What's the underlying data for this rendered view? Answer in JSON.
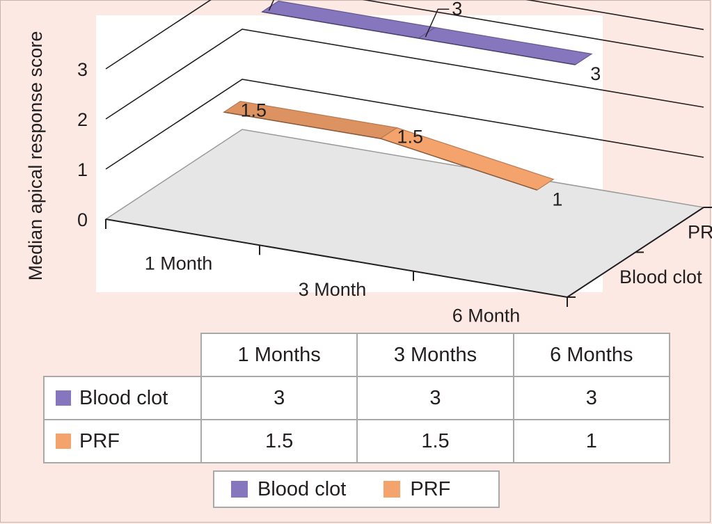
{
  "chart_data": {
    "type": "3d-line",
    "title": "",
    "ylabel": "Median apical response score",
    "ylim": [
      0,
      3
    ],
    "yticks": [
      "0",
      "1",
      "2",
      "3"
    ],
    "categories": [
      "1 Month",
      "3 Month",
      "6 Month"
    ],
    "depth_labels": [
      "PRF",
      "Blood clot"
    ],
    "series": [
      {
        "name": "Blood clot",
        "values": [
          3,
          3,
          3
        ],
        "labels": [
          "3",
          "3",
          "3"
        ],
        "color": "#8676be"
      },
      {
        "name": "PRF",
        "values": [
          1.5,
          1.5,
          1
        ],
        "labels": [
          "1.5",
          "1.5",
          "1"
        ],
        "color": "#f4a36c"
      }
    ],
    "grid": true,
    "legend": "bottom"
  },
  "table": {
    "headers": [
      "1 Months",
      "3 Months",
      "6 Months"
    ],
    "rows": [
      {
        "label": "Blood clot",
        "color": "#8676be",
        "values": [
          "3",
          "3",
          "3"
        ]
      },
      {
        "label": "PRF",
        "color": "#f4a36c",
        "values": [
          "1.5",
          "1.5",
          "1"
        ]
      }
    ]
  },
  "legend": {
    "items": [
      {
        "label": "Blood clot",
        "color": "#8676be"
      },
      {
        "label": "PRF",
        "color": "#f4a36c"
      }
    ]
  }
}
